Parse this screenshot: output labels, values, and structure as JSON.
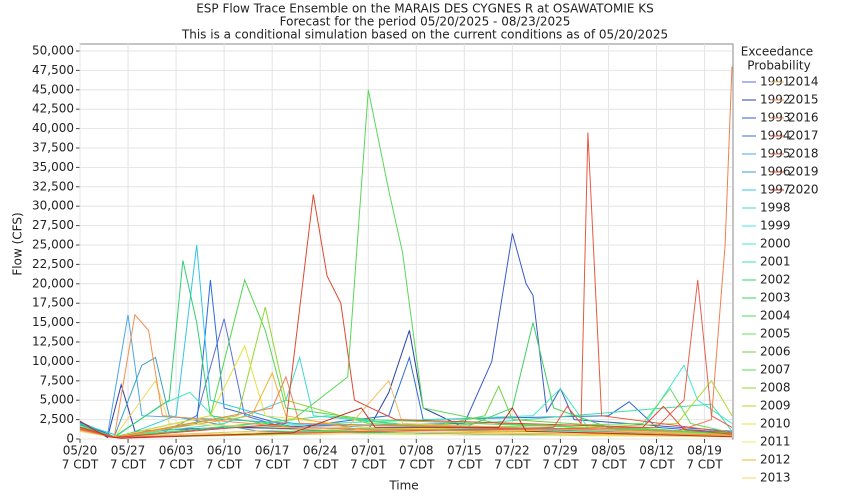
{
  "chart_data": {
    "type": "line",
    "title": "ESP Flow Trace Ensemble on the MARAIS DES CYGNES R at OSAWATOMIE KS",
    "subtitle": "Forecast for the period 05/20/2025 - 08/23/2025",
    "note": "This is a conditional simulation based on the current conditions as of 05/20/2025",
    "x_label": "Time",
    "y_label": "Flow (CFS)",
    "legend_title": [
      "Exceedance",
      "Probability"
    ],
    "xlim": [
      "05/20",
      "08/23"
    ],
    "xticks": [
      {
        "value": "05/20",
        "label": [
          "05/20",
          "7 CDT"
        ]
      },
      {
        "value": "05/27",
        "label": [
          "05/27",
          "7 CDT"
        ]
      },
      {
        "value": "06/03",
        "label": [
          "06/03",
          "7 CDT"
        ]
      },
      {
        "value": "06/10",
        "label": [
          "06/10",
          "7 CDT"
        ]
      },
      {
        "value": "06/17",
        "label": [
          "06/17",
          "7 CDT"
        ]
      },
      {
        "value": "06/24",
        "label": [
          "06/24",
          "7 CDT"
        ]
      },
      {
        "value": "07/01",
        "label": [
          "07/01",
          "7 CDT"
        ]
      },
      {
        "value": "07/08",
        "label": [
          "07/08",
          "7 CDT"
        ]
      },
      {
        "value": "07/15",
        "label": [
          "07/15",
          "7 CDT"
        ]
      },
      {
        "value": "07/22",
        "label": [
          "07/22",
          "7 CDT"
        ]
      },
      {
        "value": "07/29",
        "label": [
          "07/29",
          "7 CDT"
        ]
      },
      {
        "value": "08/05",
        "label": [
          "08/05",
          "7 CDT"
        ]
      },
      {
        "value": "08/12",
        "label": [
          "08/12",
          "7 CDT"
        ]
      },
      {
        "value": "08/19",
        "label": [
          "08/19",
          "7 CDT"
        ]
      }
    ],
    "ylim": [
      0,
      50000
    ],
    "yticks": [
      0,
      {
        "value": 2500,
        "label": "2,500"
      },
      {
        "value": 5000,
        "label": "5,000"
      },
      {
        "value": 7500,
        "label": "7,500"
      },
      {
        "value": 10000,
        "label": "10,000"
      },
      {
        "value": 12500,
        "label": "12,500"
      },
      {
        "value": 15000,
        "label": "15,000"
      },
      {
        "value": 17500,
        "label": "17,500"
      },
      {
        "value": 20000,
        "label": "20,000"
      },
      {
        "value": 22500,
        "label": "22,500"
      },
      {
        "value": 25000,
        "label": "25,000"
      },
      {
        "value": 27500,
        "label": "27,500"
      },
      {
        "value": 30000,
        "label": "30,000"
      },
      {
        "value": 32500,
        "label": "32,500"
      },
      {
        "value": 35000,
        "label": "35,000"
      },
      {
        "value": 37500,
        "label": "37,500"
      },
      {
        "value": 40000,
        "label": "40,000"
      },
      {
        "value": 42500,
        "label": "42,500"
      },
      {
        "value": 45000,
        "label": "45,000"
      },
      {
        "value": 47500,
        "label": "47,500"
      },
      {
        "value": 50000,
        "label": "50,000"
      }
    ],
    "grid": true,
    "series": [
      {
        "name": "1991",
        "color": "#5b6fd8",
        "x": [
          "05/20",
          "05/24",
          "06/01",
          "06/06",
          "06/10",
          "06/13",
          "06/20",
          "07/05",
          "07/20",
          "08/10",
          "08/23"
        ],
        "values": [
          2300,
          300,
          800,
          3000,
          15500,
          3000,
          1200,
          800,
          600,
          500,
          400
        ]
      },
      {
        "name": "1992",
        "color": "#2b3fa8",
        "x": [
          "05/20",
          "05/24",
          "05/26",
          "05/28",
          "06/10",
          "07/01",
          "07/04",
          "07/07",
          "07/09",
          "07/15",
          "08/01",
          "08/23"
        ],
        "values": [
          2000,
          200,
          7000,
          1000,
          1500,
          1200,
          6000,
          14000,
          4000,
          1500,
          1000,
          600
        ]
      },
      {
        "name": "1993",
        "color": "#3a5ac8",
        "x": [
          "05/20",
          "05/25",
          "06/10",
          "07/15",
          "07/19",
          "07/22",
          "07/24",
          "07/25",
          "07/27",
          "07/29",
          "07/31",
          "08/23"
        ],
        "values": [
          2200,
          300,
          1500,
          2000,
          10000,
          26500,
          20000,
          18500,
          3500,
          6500,
          2500,
          1000
        ]
      },
      {
        "name": "1994",
        "color": "#2c6cd8",
        "x": [
          "05/20",
          "05/25",
          "06/06",
          "06/08",
          "06/10",
          "06/20",
          "07/04",
          "07/07",
          "07/09",
          "08/05",
          "08/08",
          "08/12",
          "08/23"
        ],
        "values": [
          2100,
          200,
          2000,
          20500,
          4000,
          1500,
          3000,
          10500,
          2500,
          3000,
          4800,
          1500,
          800
        ]
      },
      {
        "name": "1995",
        "color": "#4aa8e8",
        "x": [
          "05/20",
          "05/24",
          "05/27",
          "05/29",
          "06/10",
          "07/01",
          "08/23"
        ],
        "values": [
          2000,
          500,
          16000,
          3000,
          2500,
          1500,
          500
        ]
      },
      {
        "name": "1996",
        "color": "#3aa0c0",
        "x": [
          "05/20",
          "05/25",
          "05/29",
          "05/31",
          "06/02",
          "06/15",
          "08/23"
        ],
        "values": [
          1800,
          300,
          9500,
          10500,
          3000,
          1000,
          300
        ]
      },
      {
        "name": "1997",
        "color": "#30c8e0",
        "x": [
          "05/20",
          "05/26",
          "06/03",
          "06/06",
          "06/08",
          "06/20",
          "08/23"
        ],
        "values": [
          2000,
          300,
          3000,
          25000,
          5000,
          2000,
          600
        ]
      },
      {
        "name": "1998",
        "color": "#40d8d0",
        "x": [
          "05/20",
          "05/25",
          "06/10",
          "06/19",
          "06/21",
          "06/23",
          "07/10",
          "08/23"
        ],
        "values": [
          1500,
          300,
          2000,
          5000,
          10500,
          3000,
          1500,
          400
        ]
      },
      {
        "name": "1999",
        "color": "#40e8e0",
        "x": [
          "05/20",
          "05/25",
          "07/01",
          "08/10",
          "08/16",
          "08/18",
          "08/23"
        ],
        "values": [
          1200,
          200,
          1000,
          1500,
          9500,
          5000,
          2000
        ]
      },
      {
        "name": "2000",
        "color": "#40e8c0",
        "x": [
          "05/20",
          "05/25",
          "06/01",
          "06/05",
          "06/10",
          "07/25",
          "07/29",
          "08/02",
          "08/23"
        ],
        "values": [
          1500,
          200,
          4500,
          6000,
          1500,
          3000,
          6500,
          1500,
          500
        ]
      },
      {
        "name": "2001",
        "color": "#40e0a0",
        "x": [
          "05/20",
          "05/25",
          "06/15",
          "06/25",
          "07/10",
          "08/20",
          "08/23"
        ],
        "values": [
          1300,
          300,
          2000,
          3000,
          1500,
          4500,
          1000
        ]
      },
      {
        "name": "2002",
        "color": "#30d070",
        "x": [
          "05/20",
          "05/25",
          "06/02",
          "06/04",
          "06/06",
          "06/08",
          "06/20",
          "08/23"
        ],
        "values": [
          1800,
          300,
          5000,
          23000,
          15000,
          3000,
          1500,
          500
        ]
      },
      {
        "name": "2003",
        "color": "#40d060",
        "x": [
          "05/20",
          "05/25",
          "07/15",
          "07/22",
          "07/25",
          "07/28",
          "08/05",
          "08/23"
        ],
        "values": [
          1500,
          300,
          1500,
          4000,
          15000,
          4000,
          1500,
          600
        ]
      },
      {
        "name": "2004",
        "color": "#50d850",
        "x": [
          "05/20",
          "05/25",
          "06/08",
          "06/13",
          "06/16",
          "06/19",
          "07/01",
          "08/23"
        ],
        "values": [
          1600,
          300,
          3000,
          20500,
          14000,
          4000,
          2500,
          800
        ]
      },
      {
        "name": "2005",
        "color": "#60e060",
        "x": [
          "05/20",
          "05/25",
          "07/15",
          "08/10",
          "08/14",
          "08/17",
          "08/23"
        ],
        "values": [
          1400,
          200,
          1500,
          2000,
          6500,
          2000,
          800
        ]
      },
      {
        "name": "2006",
        "color": "#70d040",
        "x": [
          "05/20",
          "05/25",
          "07/10",
          "07/18",
          "07/20",
          "07/22",
          "08/23"
        ],
        "values": [
          1300,
          200,
          1500,
          3000,
          6800,
          2500,
          600
        ]
      },
      {
        "name": "2007",
        "color": "#58d858",
        "x": [
          "05/20",
          "05/25",
          "06/20",
          "06/28",
          "07/01",
          "07/04",
          "07/06",
          "07/09",
          "07/20",
          "08/23"
        ],
        "values": [
          1500,
          200,
          2500,
          8000,
          45000,
          32000,
          24000,
          4000,
          2000,
          700
        ]
      },
      {
        "name": "2008",
        "color": "#90d830",
        "x": [
          "05/20",
          "05/25",
          "06/12",
          "06/16",
          "06/19",
          "07/01",
          "08/23"
        ],
        "values": [
          1400,
          200,
          3000,
          17000,
          5000,
          2000,
          600
        ]
      },
      {
        "name": "2009",
        "color": "#b0d830",
        "x": [
          "05/20",
          "05/25",
          "07/20",
          "08/15",
          "08/20",
          "08/23"
        ],
        "values": [
          1200,
          200,
          1000,
          2000,
          7500,
          3000
        ]
      },
      {
        "name": "2010",
        "color": "#e8e040",
        "x": [
          "05/20",
          "05/25",
          "06/08",
          "06/13",
          "06/16",
          "07/01",
          "08/23"
        ],
        "values": [
          1200,
          200,
          3000,
          12000,
          3000,
          1500,
          500
        ]
      },
      {
        "name": "2011",
        "color": "#e8e870",
        "x": [
          "05/20",
          "05/25",
          "06/15",
          "07/15",
          "08/23"
        ],
        "values": [
          1000,
          200,
          800,
          500,
          300
        ]
      },
      {
        "name": "2012",
        "color": "#f0b030",
        "x": [
          "05/20",
          "05/25",
          "06/14",
          "06/17",
          "06/19",
          "07/01",
          "08/23"
        ],
        "values": [
          1100,
          200,
          3000,
          8500,
          3000,
          1000,
          400
        ]
      },
      {
        "name": "2013",
        "color": "#f0d860",
        "x": [
          "05/20",
          "05/25",
          "05/31",
          "06/02",
          "07/10",
          "08/23"
        ],
        "values": [
          1000,
          200,
          7500,
          2000,
          800,
          300
        ]
      },
      {
        "name": "2014",
        "color": "#f0c060",
        "x": [
          "05/20",
          "05/25",
          "06/28",
          "07/04",
          "07/06",
          "08/23"
        ],
        "values": [
          1100,
          300,
          1500,
          7500,
          2000,
          500
        ]
      },
      {
        "name": "2015",
        "color": "#f09050",
        "x": [
          "05/20",
          "05/25",
          "05/28",
          "05/30",
          "06/01",
          "06/20",
          "08/23"
        ],
        "values": [
          1300,
          300,
          16000,
          14000,
          3000,
          1500,
          500
        ]
      },
      {
        "name": "2016",
        "color": "#f08050",
        "x": [
          "05/20",
          "05/25",
          "06/17",
          "06/19",
          "06/21",
          "08/15",
          "08/20",
          "08/22",
          "08/23"
        ],
        "values": [
          1200,
          200,
          4000,
          8000,
          2000,
          1000,
          2500,
          25000,
          48000
        ]
      },
      {
        "name": "2017",
        "color": "#e85840",
        "x": [
          "05/20",
          "05/25",
          "07/28",
          "07/30",
          "08/01",
          "08/02",
          "08/04",
          "08/23"
        ],
        "values": [
          1500,
          200,
          1500,
          4200,
          2000,
          39500,
          3000,
          800
        ]
      },
      {
        "name": "2018",
        "color": "#e86050",
        "x": [
          "05/20",
          "05/25",
          "07/01",
          "08/12",
          "08/16",
          "08/18",
          "08/20",
          "08/23"
        ],
        "values": [
          1300,
          200,
          1000,
          1500,
          5000,
          20500,
          3000,
          1500
        ]
      },
      {
        "name": "2019",
        "color": "#e04830",
        "x": [
          "05/20",
          "05/25",
          "06/19",
          "06/23",
          "06/25",
          "06/27",
          "06/29",
          "07/05",
          "08/10",
          "08/13",
          "08/16",
          "08/23"
        ],
        "values": [
          1500,
          200,
          2000,
          31500,
          21000,
          17500,
          5000,
          2500,
          1500,
          4200,
          1200,
          600
        ]
      },
      {
        "name": "2020",
        "color": "#c03020",
        "x": [
          "05/20",
          "05/22",
          "05/24",
          "05/26",
          "06/20",
          "06/30",
          "07/02",
          "07/20",
          "07/22",
          "07/24",
          "08/23"
        ],
        "values": [
          2300,
          1200,
          300,
          100,
          800,
          4000,
          1500,
          1500,
          4000,
          1000,
          300
        ]
      }
    ]
  }
}
